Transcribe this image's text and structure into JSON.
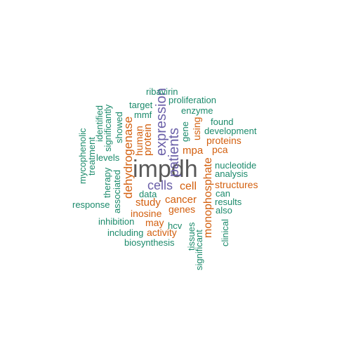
{
  "colors": {
    "dark": "#595959",
    "purple": "#6a5fa8",
    "orange": "#d35f0e",
    "green": "#1b8a6b"
  },
  "words": {
    "impdh": "impdh",
    "patients": "patients",
    "expression": "expression",
    "cells": "cells",
    "dehydrogenase": "dehydrogenase",
    "monophosphate": "monophosphate",
    "cell": "cell",
    "cancer": "cancer",
    "study": "study",
    "inosine": "inosine",
    "genes": "genes",
    "may": "may",
    "activity": "activity",
    "mpa": "mpa",
    "protein": "protein",
    "human": "human",
    "using": "using",
    "proteins": "proteins",
    "pca": "pca",
    "structures": "structures",
    "ribavirin": "ribavirin",
    "proliferation": "proliferation",
    "target": "target",
    "enzyme": "enzyme",
    "mmf": "mmf",
    "found": "found",
    "development": "development",
    "gene": "gene",
    "nucleotide": "nucleotide",
    "analysis": "analysis",
    "can": "can",
    "results": "results",
    "also": "also",
    "clinical": "clinical",
    "tissues": "tissues",
    "significant": "significant",
    "hcv": "hcv",
    "including": "including",
    "biosynthesis": "biosynthesis",
    "inhibition": "inhibition",
    "response": "response",
    "data": "data",
    "associated": "associated",
    "therapy": "therapy",
    "levels": "levels",
    "treatment": "treatment",
    "mycophenolic": "mycophenolic",
    "identified": "identified",
    "significantly": "significantly",
    "showed": "showed"
  }
}
